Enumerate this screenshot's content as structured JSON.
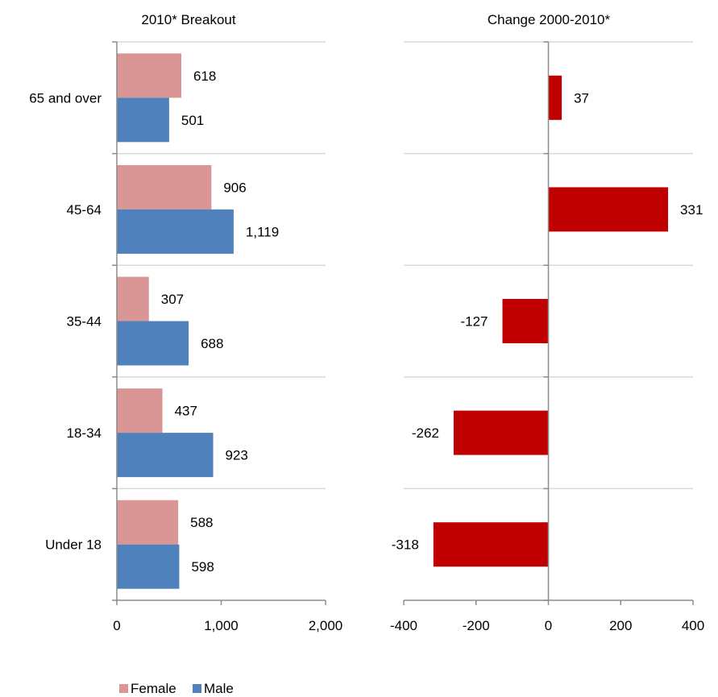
{
  "colors": {
    "female": "#d99694",
    "male": "#4f81bd",
    "change": "#c00000",
    "axis": "#8c8c8c",
    "grid": "#d9d9d9"
  },
  "chart_data": [
    {
      "type": "bar",
      "orientation": "horizontal",
      "title": "2010* Breakout",
      "categories": [
        "65 and over",
        "45-64",
        "35-44",
        "18-34",
        "Under 18"
      ],
      "series": [
        {
          "name": "Female",
          "values": [
            618,
            906,
            307,
            437,
            588
          ],
          "labels": [
            "618",
            "906",
            "307",
            "437",
            "588"
          ]
        },
        {
          "name": "Male",
          "values": [
            501,
            1119,
            688,
            923,
            598
          ],
          "labels": [
            "501",
            "1,119",
            "688",
            "923",
            "598"
          ]
        }
      ],
      "xlim": [
        0,
        2000
      ],
      "xticks": [
        0,
        1000,
        2000
      ],
      "xtick_labels": [
        "0",
        "1,000",
        "2,000"
      ],
      "grid": true,
      "legend": {
        "placement": "bottom-left",
        "entries": [
          {
            "label": "Female",
            "color": "#d99694"
          },
          {
            "label": "Male",
            "color": "#4f81bd"
          }
        ]
      }
    },
    {
      "type": "bar",
      "orientation": "horizontal",
      "title": "Change 2000-2010*",
      "categories": [
        "65 and over",
        "45-64",
        "35-44",
        "18-34",
        "Under 18"
      ],
      "series": [
        {
          "values": [
            37,
            331,
            -127,
            -262,
            -318
          ],
          "labels": [
            "37",
            "331",
            "-127",
            "-262",
            "-318"
          ]
        }
      ],
      "xlim": [
        -400,
        400
      ],
      "xticks": [
        -400,
        -200,
        0,
        200,
        400
      ],
      "xtick_labels": [
        "-400",
        "-200",
        "0",
        "200",
        "400"
      ],
      "grid": true
    }
  ]
}
